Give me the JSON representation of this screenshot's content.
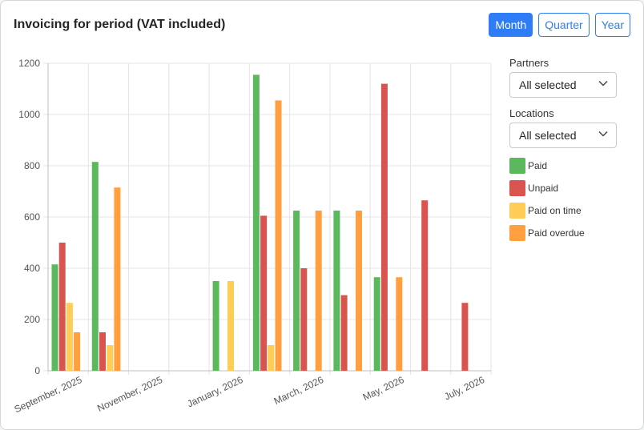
{
  "header": {
    "title": "Invoicing for period (VAT included)",
    "periods": [
      "Month",
      "Quarter",
      "Year"
    ],
    "active_period": "Month"
  },
  "filters": {
    "partners": {
      "label": "Partners",
      "value": "All selected"
    },
    "locations": {
      "label": "Locations",
      "value": "All selected"
    }
  },
  "icons": {
    "dropdown": "chevron-down-icon"
  },
  "chart_data": {
    "type": "bar",
    "categories": [
      "September, 2025",
      "October, 2025",
      "November, 2025",
      "December, 2025",
      "January, 2026",
      "February, 2026",
      "March, 2026",
      "April, 2026",
      "May, 2026",
      "June, 2026",
      "July, 2026"
    ],
    "x_tick_labels": [
      "September, 2025",
      "November, 2025",
      "January, 2026",
      "March, 2026",
      "May, 2026",
      "July, 2026"
    ],
    "series": [
      {
        "name": "Paid",
        "color": "#5cb85c",
        "values": [
          415,
          815,
          0,
          0,
          350,
          1155,
          625,
          625,
          365,
          0,
          0
        ]
      },
      {
        "name": "Unpaid",
        "color": "#d9534f",
        "values": [
          500,
          150,
          0,
          0,
          0,
          605,
          400,
          295,
          1120,
          665,
          265
        ]
      },
      {
        "name": "Paid on time",
        "color": "#ffcd56",
        "values": [
          265,
          100,
          0,
          0,
          350,
          100,
          0,
          0,
          0,
          0,
          0
        ]
      },
      {
        "name": "Paid overdue",
        "color": "#ff9f40",
        "values": [
          150,
          715,
          0,
          0,
          0,
          1055,
          625,
          625,
          365,
          0,
          0
        ]
      }
    ],
    "ylim": [
      0,
      1200
    ],
    "yticks": [
      0,
      200,
      400,
      600,
      800,
      1000,
      1200
    ],
    "grid": true,
    "legend": "right"
  }
}
